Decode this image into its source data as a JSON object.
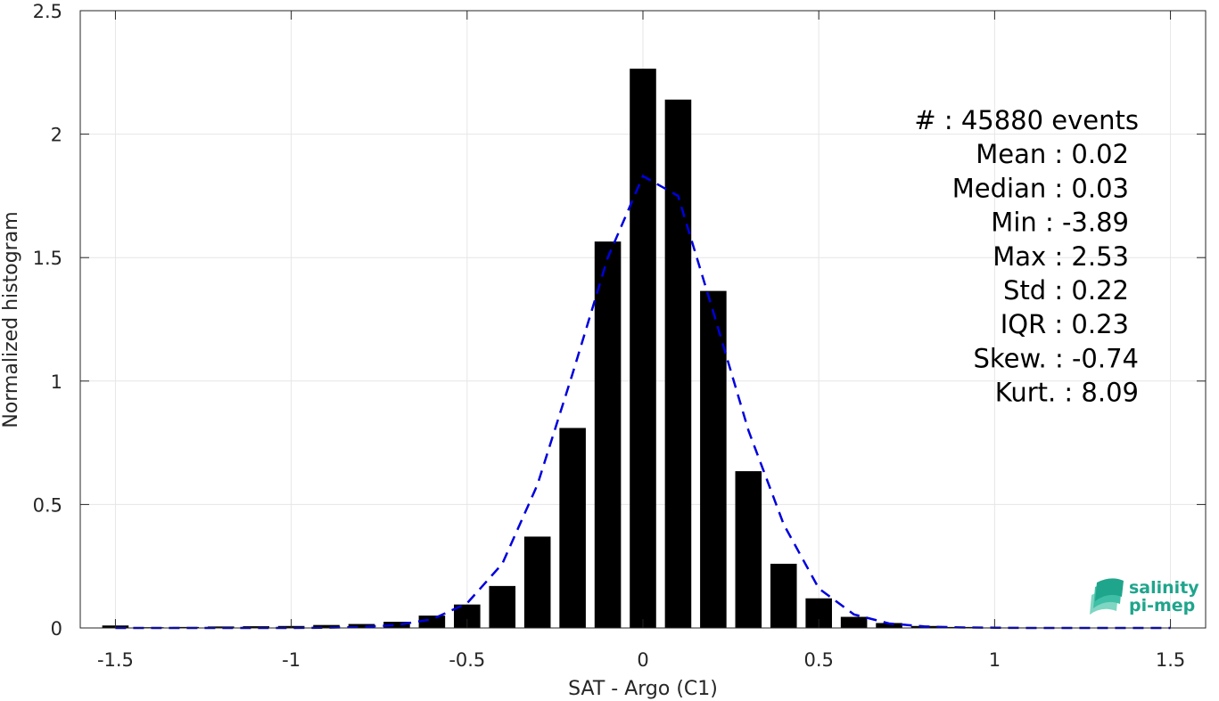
{
  "chart_data": {
    "type": "bar",
    "xlabel": "SAT - Argo (C1)",
    "ylabel": "Normalized histogram",
    "xlim": [
      -1.6,
      1.6
    ],
    "ylim": [
      0,
      2.5
    ],
    "grid": true,
    "xticks": [
      -1.5,
      -1,
      -0.5,
      0,
      0.5,
      1,
      1.5
    ],
    "xtick_labels": [
      "-1.5",
      "-1",
      "-0.5",
      "0",
      "0.5",
      "1",
      "1.5"
    ],
    "yticks": [
      0,
      0.5,
      1,
      1.5,
      2,
      2.5
    ],
    "ytick_labels": [
      "0",
      "0.5",
      "1",
      "1.5",
      "2",
      "2.5"
    ],
    "bar_width": 0.075,
    "bars": {
      "x": [
        -1.5,
        -1.4,
        -1.3,
        -1.2,
        -1.1,
        -1.0,
        -0.9,
        -0.8,
        -0.7,
        -0.6,
        -0.5,
        -0.4,
        -0.3,
        -0.2,
        -0.1,
        0.0,
        0.1,
        0.2,
        0.3,
        0.4,
        0.5,
        0.6,
        0.7,
        0.8,
        0.9,
        1.0,
        1.1,
        1.2,
        1.3,
        1.4,
        1.5
      ],
      "values": [
        0.01,
        0.003,
        0.004,
        0.006,
        0.007,
        0.008,
        0.012,
        0.016,
        0.025,
        0.05,
        0.095,
        0.17,
        0.37,
        0.81,
        1.565,
        2.265,
        2.14,
        1.365,
        0.635,
        0.26,
        0.12,
        0.045,
        0.02,
        0.008,
        0.004,
        0.002,
        0.002,
        0.001,
        0.001,
        0.001,
        0.001
      ]
    },
    "fit_curve": {
      "style": "dashed",
      "color": "#0000dd",
      "x": [
        -1.5,
        -1.4,
        -1.3,
        -1.2,
        -1.1,
        -1.0,
        -0.9,
        -0.8,
        -0.7,
        -0.6,
        -0.5,
        -0.4,
        -0.3,
        -0.2,
        -0.1,
        0.0,
        0.1,
        0.2,
        0.3,
        0.4,
        0.5,
        0.6,
        0.7,
        0.8,
        0.9,
        1.0,
        1.1,
        1.2,
        1.3,
        1.4,
        1.5
      ],
      "values": [
        0.0,
        0.0,
        0.0,
        0.0,
        0.0,
        0.0,
        0.001,
        0.004,
        0.012,
        0.035,
        0.1,
        0.26,
        0.58,
        1.03,
        1.5,
        1.83,
        1.75,
        1.28,
        0.8,
        0.42,
        0.16,
        0.055,
        0.018,
        0.006,
        0.002,
        0.001,
        0.0,
        0.0,
        0.0,
        0.0,
        0.0
      ]
    },
    "bar_color": "#000000",
    "stats": [
      {
        "label": "#  : 45880 events"
      },
      {
        "label": "Mean : 0.02"
      },
      {
        "label": "Median : 0.03"
      },
      {
        "label": "Min : -3.89"
      },
      {
        "label": "Max : 2.53"
      },
      {
        "label": "Std : 0.22"
      },
      {
        "label": "IQR : 0.23"
      },
      {
        "label": "Skew. : -0.74"
      },
      {
        "label": "Kurt. : 8.09"
      }
    ]
  },
  "logo": {
    "line1": "salinity",
    "line2": "pi-mep",
    "color": "#1fa58c"
  }
}
